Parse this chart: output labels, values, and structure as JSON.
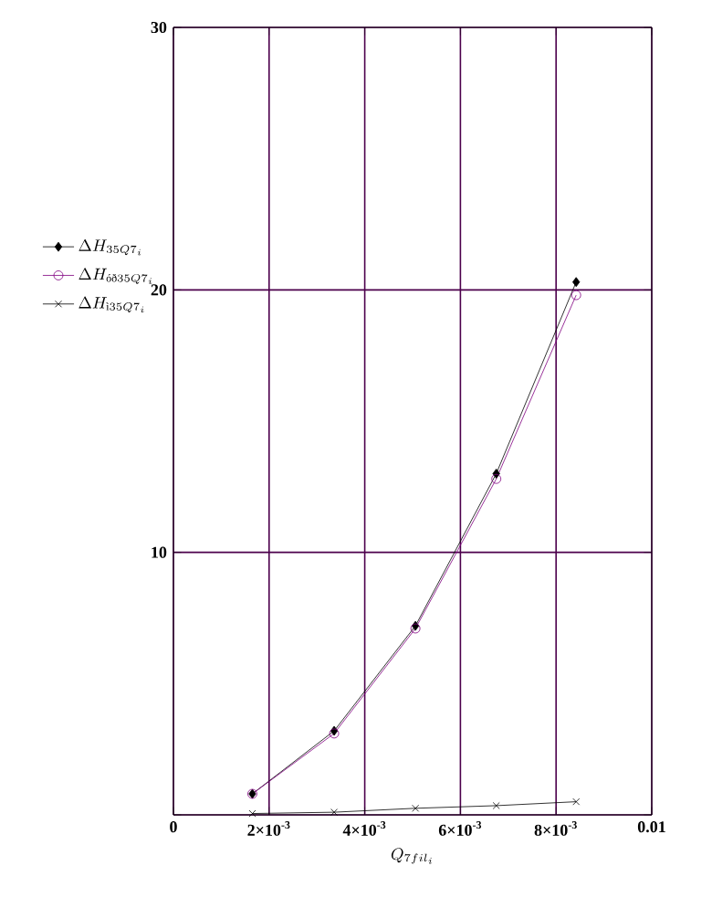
{
  "chart_data": {
    "type": "line",
    "xlabel": "Q_{7fil_{i}}",
    "x": [
      0.00165,
      0.00336,
      0.00506,
      0.00675,
      0.00842
    ],
    "series": [
      {
        "name": "\\Delta H_{35Q7_{i}}",
        "color": "#000000",
        "marker": "diamond",
        "values": [
          0.8,
          3.2,
          7.2,
          13.0,
          20.3
        ]
      },
      {
        "name": "\\Delta H_{\\text{óð}35Q7_{i}}",
        "color": "#800080",
        "marker": "circle",
        "values": [
          0.8,
          3.1,
          7.1,
          12.8,
          19.8
        ]
      },
      {
        "name": "\\Delta H_{\\text{ì}35Q7_{i}}",
        "color": "#000000",
        "marker": "cross",
        "values": [
          0.05,
          0.1,
          0.25,
          0.35,
          0.5
        ]
      }
    ],
    "xlim": [
      0,
      0.01
    ],
    "ylim": [
      0,
      30
    ],
    "xticks": [
      0,
      {
        "value": 0.002,
        "label": "2×10$^{-3}$"
      },
      {
        "value": 0.004,
        "label": "4×10$^{-3}$"
      },
      {
        "value": 0.006,
        "label": "6×10$^{-3}$"
      },
      {
        "value": 0.008,
        "label": "8×10$^{-3}$"
      },
      0.01
    ],
    "yticks": [
      {
        "value": 0,
        "label": null
      },
      10,
      20,
      30
    ],
    "grid": true,
    "legend": "left"
  }
}
